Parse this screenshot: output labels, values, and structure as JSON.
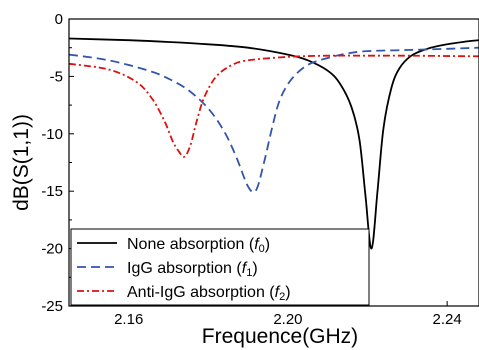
{
  "chart_data": {
    "type": "line",
    "title": "",
    "xlabel": "Frequence(GHz)",
    "ylabel": "dB(S(1,1))",
    "xlim": [
      2.145,
      2.248
    ],
    "ylim": [
      -25,
      0
    ],
    "xticks": [
      2.16,
      2.2,
      2.24
    ],
    "xtick_labels": [
      "2.16",
      "2.20",
      "2.24"
    ],
    "yticks": [
      0,
      -5,
      -10,
      -15,
      -20,
      -25
    ],
    "ytick_labels": [
      "0",
      "-5",
      "-10",
      "-15",
      "-20",
      "-25"
    ],
    "grid": false,
    "legend_position": "bottom-left",
    "series": [
      {
        "name": "None absorption (f0)",
        "legend_prefix": "None absorption (",
        "legend_symbol": "f",
        "legend_sub": "0",
        "legend_suffix": ")",
        "color": "#000000",
        "dash": "solid",
        "x": [
          2.145,
          2.16,
          2.17,
          2.18,
          2.19,
          2.2,
          2.205,
          2.21,
          2.213,
          2.216,
          2.218,
          2.2195,
          2.221,
          2.2225,
          2.224,
          2.226,
          2.228,
          2.231,
          2.235,
          2.24,
          2.245,
          2.248
        ],
        "y": [
          -1.7,
          -1.85,
          -2.0,
          -2.2,
          -2.5,
          -3.1,
          -3.6,
          -4.5,
          -5.6,
          -7.7,
          -10.6,
          -15.5,
          -20.0,
          -15.0,
          -9.5,
          -6.0,
          -4.3,
          -3.2,
          -2.6,
          -2.2,
          -1.95,
          -1.85
        ]
      },
      {
        "name": "IgG absorption (f1)",
        "legend_prefix": "IgG absorption (",
        "legend_symbol": "f",
        "legend_sub": "1",
        "legend_suffix": ")",
        "color": "#3355aa",
        "dash": "dashed",
        "x": [
          2.145,
          2.155,
          2.165,
          2.17,
          2.175,
          2.18,
          2.184,
          2.187,
          2.19,
          2.192,
          2.194,
          2.196,
          2.198,
          2.201,
          2.205,
          2.21,
          2.215,
          2.22,
          2.23,
          2.24,
          2.248
        ],
        "y": [
          -3.1,
          -3.6,
          -4.5,
          -5.2,
          -6.2,
          -7.8,
          -9.8,
          -12.0,
          -14.6,
          -14.9,
          -12.5,
          -9.5,
          -7.0,
          -5.2,
          -4.0,
          -3.4,
          -3.0,
          -2.8,
          -2.7,
          -2.6,
          -2.5
        ]
      },
      {
        "name": "Anti-IgG absorption (f2)",
        "legend_prefix": "Anti-IgG absorption (",
        "legend_symbol": "f",
        "legend_sub": "2",
        "legend_suffix": ")",
        "color": "#dd1111",
        "dash": "dashdot",
        "x": [
          2.145,
          2.155,
          2.162,
          2.166,
          2.169,
          2.171,
          2.1725,
          2.174,
          2.1755,
          2.177,
          2.179,
          2.182,
          2.186,
          2.19,
          2.2,
          2.21,
          2.22,
          2.23,
          2.248
        ],
        "y": [
          -3.9,
          -4.4,
          -5.5,
          -7.0,
          -8.9,
          -10.6,
          -11.5,
          -12.0,
          -11.0,
          -9.0,
          -6.8,
          -5.0,
          -4.0,
          -3.6,
          -3.3,
          -3.2,
          -3.2,
          -3.2,
          -3.25
        ]
      }
    ]
  }
}
